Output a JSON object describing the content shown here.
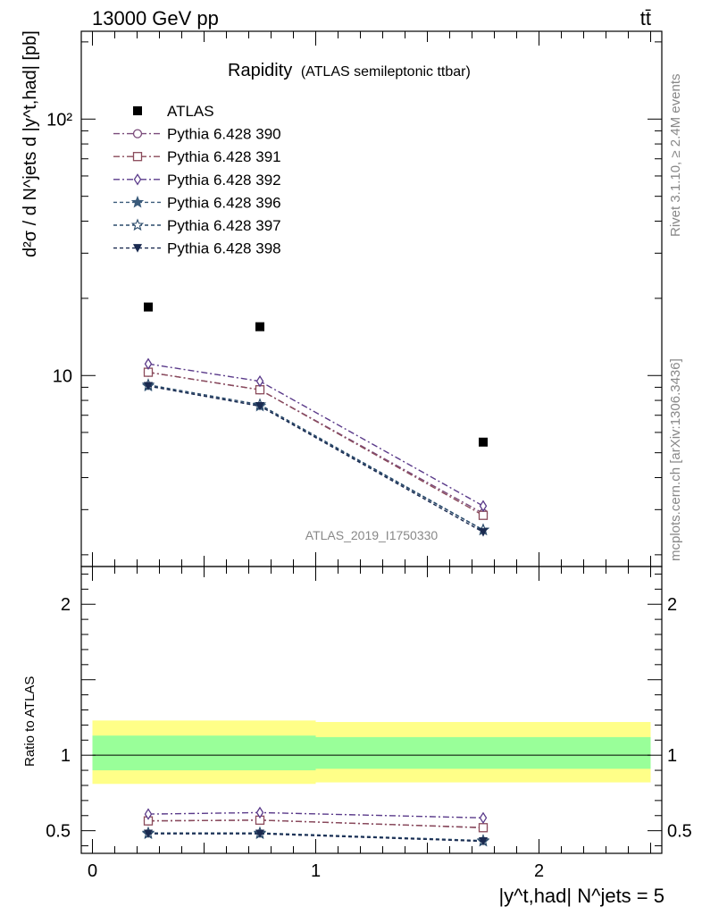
{
  "header": {
    "left": "13000 GeV pp",
    "right": "tt̄"
  },
  "side": {
    "rivet": "Rivet 3.1.10, ≥ 2.4M events",
    "mcplots": "mcplots.cern.ch [arXiv:1306.3436]"
  },
  "chart_data": [
    {
      "type": "scatter",
      "title": "Rapidity",
      "subtitle": "(ATLAS semileptonic ttbar)",
      "analysis_label": "ATLAS_2019_I1750330",
      "ylabel": "d²σ / d N^jets d |y^t,had| [pb]",
      "yscale": "log",
      "ylim": [
        1.8,
        220
      ],
      "xlim": [
        -0.05,
        2.55
      ],
      "ytick_labels": [
        "10",
        "10²"
      ],
      "grid": false,
      "legend_position": "top-left",
      "x": [
        0.25,
        0.75,
        1.75
      ],
      "data": {
        "name": "ATLAS",
        "values": [
          18.5,
          15.5,
          5.5
        ],
        "color": "#000000",
        "marker": "square"
      },
      "series": [
        {
          "name": "Pythia 6.428 390",
          "values": [
            10.3,
            8.8,
            2.9
          ],
          "color": "#7a4a7a",
          "marker": "circle",
          "dash": "7,3,2,3"
        },
        {
          "name": "Pythia 6.428 391",
          "values": [
            10.3,
            8.8,
            2.85
          ],
          "color": "#8a4a5a",
          "marker": "square-open",
          "dash": "7,3,2,3"
        },
        {
          "name": "Pythia 6.428 392",
          "values": [
            11.1,
            9.5,
            3.1
          ],
          "color": "#5a3a8a",
          "marker": "diamond",
          "dash": "7,3,2,3"
        },
        {
          "name": "Pythia 6.428 396",
          "values": [
            9.1,
            7.6,
            2.5
          ],
          "color": "#3a5a7a",
          "marker": "star-filled",
          "dash": "4,3"
        },
        {
          "name": "Pythia 6.428 397",
          "values": [
            9.2,
            7.7,
            2.5
          ],
          "color": "#2a4a6a",
          "marker": "star-open",
          "dash": "4,3"
        },
        {
          "name": "Pythia 6.428 398",
          "values": [
            9.1,
            7.6,
            2.45
          ],
          "color": "#1a2a50",
          "marker": "triangle-down",
          "dash": "4,3"
        }
      ]
    },
    {
      "type": "line",
      "ylabel": "Ratio to ATLAS",
      "xlabel": "|y^t,had| N^jets = 5",
      "ylim": [
        0.35,
        2.25
      ],
      "xlim": [
        -0.05,
        2.55
      ],
      "ytick_labels": [
        "0.5",
        "1",
        "2"
      ],
      "xtick_labels": [
        "0",
        "1",
        "2"
      ],
      "bands": [
        {
          "x": [
            0,
            1,
            2.5
          ],
          "inner": [
            [
              0.9,
              1.13
            ],
            [
              0.91,
              1.12
            ]
          ],
          "outer": [
            [
              0.81,
              1.23
            ],
            [
              0.82,
              1.22
            ]
          ],
          "inner_color": "#99ff99",
          "outer_color": "#ffff88"
        }
      ],
      "x": [
        0.25,
        0.75,
        1.75
      ],
      "series": [
        {
          "name": "Pythia 6.428 390",
          "values": [
            0.565,
            0.57,
            0.52
          ]
        },
        {
          "name": "Pythia 6.428 391",
          "values": [
            0.565,
            0.57,
            0.52
          ]
        },
        {
          "name": "Pythia 6.428 392",
          "values": [
            0.61,
            0.62,
            0.585
          ]
        },
        {
          "name": "Pythia 6.428 396",
          "values": [
            0.48,
            0.48,
            0.43
          ]
        },
        {
          "name": "Pythia 6.428 397",
          "values": [
            0.485,
            0.485,
            0.435
          ]
        },
        {
          "name": "Pythia 6.428 398",
          "values": [
            0.48,
            0.48,
            0.43
          ]
        }
      ]
    }
  ]
}
